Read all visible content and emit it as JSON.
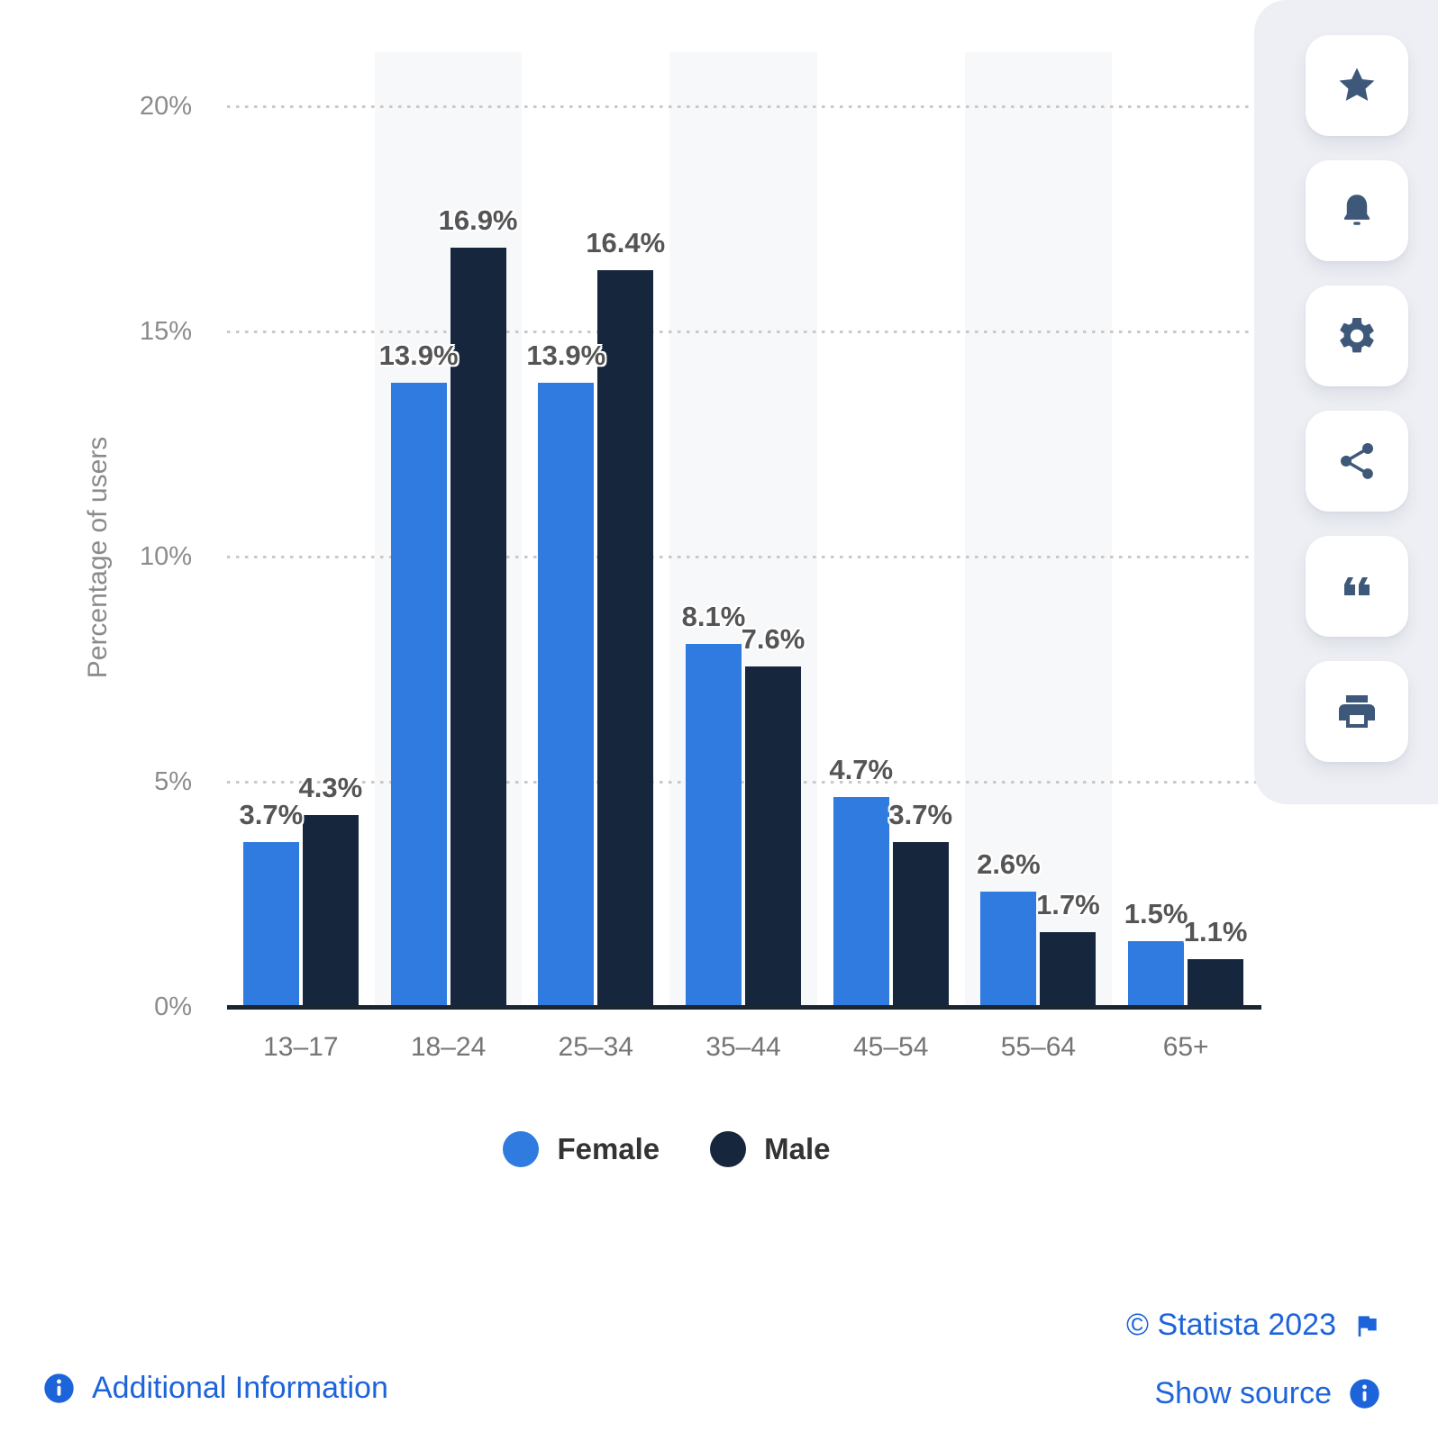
{
  "chart_data": {
    "type": "bar",
    "categories": [
      "13–17",
      "18–24",
      "25–34",
      "35–44",
      "45–54",
      "55–64",
      "65+"
    ],
    "series": [
      {
        "name": "Female",
        "color": "#2F7BE0",
        "values": [
          3.7,
          13.9,
          13.9,
          8.1,
          4.7,
          2.6,
          1.5
        ]
      },
      {
        "name": "Male",
        "color": "#16263C",
        "values": [
          4.3,
          16.9,
          16.4,
          7.6,
          3.7,
          1.7,
          1.1
        ]
      }
    ],
    "ylabel": "Percentage of users",
    "xlabel": "",
    "ylim": [
      0,
      20
    ],
    "y_ticks": [
      "0%",
      "5%",
      "10%",
      "15%",
      "20%"
    ],
    "y_tick_values": [
      0,
      5,
      10,
      15,
      20
    ],
    "value_suffix": "%",
    "grid": "horizontal-dotted",
    "legend_position": "bottom",
    "striped_category_background": true
  },
  "footer": {
    "copyright": "© Statista 2023",
    "additional_info": "Additional Information",
    "show_source": "Show source"
  },
  "sidebar": {
    "items": [
      {
        "icon": "star"
      },
      {
        "icon": "bell"
      },
      {
        "icon": "gear"
      },
      {
        "icon": "share"
      },
      {
        "icon": "quote"
      },
      {
        "icon": "print"
      }
    ]
  },
  "colors": {
    "female": "#2F7BE0",
    "male": "#16263C",
    "link_blue": "#1d64da",
    "sidebar_icon": "#3e587a",
    "sidebar_bg": "#edeff4",
    "stripe": "#f7f8fa",
    "bar_label": "#555555",
    "axis_tick": "#8b8b8b",
    "x_label": "#757575",
    "baseline": "#1c2633",
    "grid_dot": "#c9c9c9"
  }
}
